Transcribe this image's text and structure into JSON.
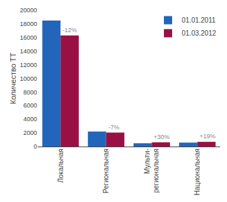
{
  "chart_data": {
    "type": "bar",
    "ylabel": "Количество ТТ",
    "categories": [
      "Локальная",
      "Региональная",
      "Мульти-\nрегиональная",
      "Национальная"
    ],
    "series": [
      {
        "name": "01.01.2011",
        "color": "#2266bb",
        "values": [
          18500,
          2200,
          480,
          580
        ]
      },
      {
        "name": "01.03.2012",
        "color": "#991144",
        "values": [
          16300,
          2050,
          620,
          690
        ]
      }
    ],
    "annotations": [
      {
        "text": "-12%",
        "category": "Локальная",
        "series": "01.03.2012",
        "color": "#888888"
      },
      {
        "text": "-7%",
        "category": "Региональная",
        "series": "01.03.2012",
        "color": "#888888"
      },
      {
        "text": "+30%",
        "category": "Мульти-\nрегиональная",
        "series": "01.03.2012",
        "color": "#888888"
      },
      {
        "text": "+19%",
        "category": "Национальная",
        "series": "01.03.2012",
        "color": "#888888"
      }
    ],
    "ylim": [
      0,
      20000
    ],
    "yticks": [
      0,
      2000,
      4000,
      6000,
      8000,
      10000,
      12000,
      14000,
      16000,
      18000,
      20000
    ],
    "grid": false,
    "legend": "upper right"
  }
}
